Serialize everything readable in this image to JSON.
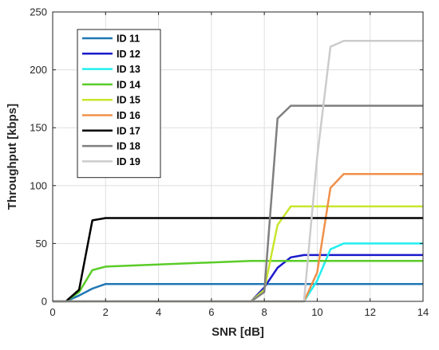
{
  "chart_data": {
    "type": "line",
    "title": "",
    "xlabel": "SNR [dB]",
    "ylabel": "Throughput [kbps]",
    "xlim": [
      0,
      14
    ],
    "ylim": [
      0,
      250
    ],
    "xticks": [
      0,
      2,
      4,
      6,
      8,
      10,
      12,
      14
    ],
    "yticks": [
      0,
      50,
      100,
      150,
      200,
      250
    ],
    "grid": true,
    "legend_position": "top-left",
    "series": [
      {
        "name": "ID 11",
        "color": "#1f77b4",
        "x": [
          0,
          0.5,
          1.0,
          1.5,
          2.0,
          14
        ],
        "y": [
          0,
          0,
          5,
          11,
          15,
          15
        ]
      },
      {
        "name": "ID 12",
        "color": "#1a1acc",
        "x": [
          0,
          7.5,
          8.0,
          8.5,
          9.0,
          9.5,
          14
        ],
        "y": [
          0,
          0,
          12,
          29,
          38,
          40,
          40
        ]
      },
      {
        "name": "ID 13",
        "color": "#22eef0",
        "x": [
          0,
          9.5,
          10.0,
          10.5,
          11.0,
          14
        ],
        "y": [
          0,
          0,
          18,
          45,
          50,
          50
        ]
      },
      {
        "name": "ID 14",
        "color": "#5acc28",
        "x": [
          0,
          0.5,
          1.0,
          1.5,
          2.0,
          7.5,
          14
        ],
        "y": [
          0,
          0,
          8,
          27,
          30,
          35,
          35
        ]
      },
      {
        "name": "ID 15",
        "color": "#c8e62c",
        "x": [
          0,
          7.5,
          8.0,
          8.5,
          9.0,
          14
        ],
        "y": [
          0,
          0,
          10,
          66,
          82,
          82
        ]
      },
      {
        "name": "ID 16",
        "color": "#f0904a",
        "x": [
          0,
          9.5,
          10.0,
          10.5,
          11.0,
          14
        ],
        "y": [
          0,
          0,
          25,
          98,
          110,
          110
        ]
      },
      {
        "name": "ID 17",
        "color": "#000000",
        "x": [
          0,
          0.5,
          1.0,
          1.5,
          2.0,
          14
        ],
        "y": [
          0,
          0,
          10,
          70,
          72,
          72
        ]
      },
      {
        "name": "ID 18",
        "color": "#7f7f7f",
        "x": [
          0,
          7.5,
          8.0,
          8.5,
          9.0,
          14
        ],
        "y": [
          0,
          0,
          8,
          158,
          169,
          169
        ]
      },
      {
        "name": "ID 19",
        "color": "#cccccc",
        "x": [
          0,
          9.5,
          10.0,
          10.5,
          11.0,
          14
        ],
        "y": [
          0,
          0,
          125,
          220,
          225,
          225
        ]
      }
    ]
  }
}
